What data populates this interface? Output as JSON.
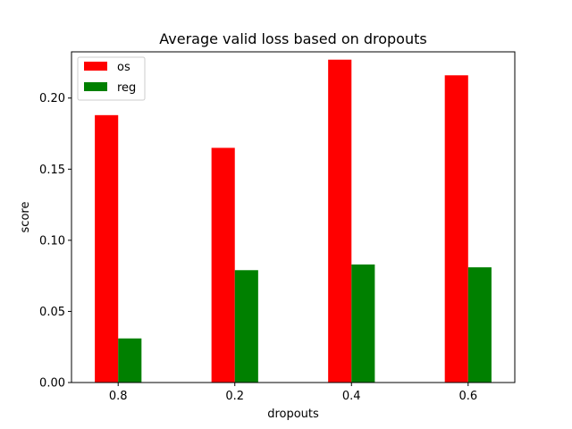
{
  "chart_data": {
    "type": "bar",
    "title": "Average valid loss based on dropouts",
    "xlabel": "dropouts",
    "ylabel": "score",
    "categories": [
      "0.8",
      "0.2",
      "0.4",
      "0.6"
    ],
    "series": [
      {
        "name": "os",
        "color": "#ff0000",
        "values": [
          0.188,
          0.165,
          0.227,
          0.216
        ]
      },
      {
        "name": "reg",
        "color": "#008000",
        "values": [
          0.031,
          0.079,
          0.083,
          0.081
        ]
      }
    ],
    "ylim": [
      0,
      0.2325
    ],
    "yticks": [
      0.0,
      0.05,
      0.1,
      0.15,
      0.2
    ],
    "ytick_labels": [
      "0.00",
      "0.05",
      "0.10",
      "0.15",
      "0.20"
    ],
    "legend_position": "top-left",
    "grid": false
  }
}
